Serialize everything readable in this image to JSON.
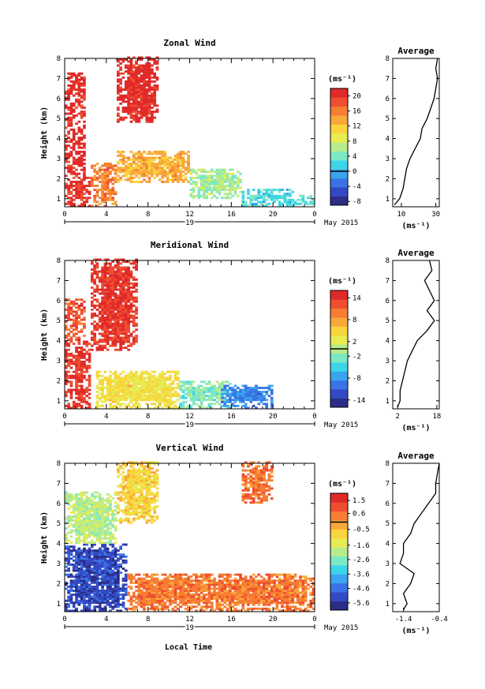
{
  "colors": {
    "scale": [
      "#2b2d86",
      "#3349c3",
      "#3a73e6",
      "#3aa5ee",
      "#3dd6e8",
      "#7de8c6",
      "#b8ec8a",
      "#e6ec52",
      "#f9d43c",
      "#f9a83a",
      "#f77d33",
      "#ef4e30",
      "#e02a2a"
    ],
    "zero_line": "#000000"
  },
  "shared": {
    "x_ticks": [
      "0",
      "4",
      "8",
      "12",
      "16",
      "20",
      "0"
    ],
    "date_day": "19",
    "date_label": "May 2015",
    "y_ticks": [
      "1",
      "2",
      "3",
      "4",
      "5",
      "6",
      "7",
      "8"
    ],
    "ylabel": "Height (km)",
    "units": "(ms⁻¹)",
    "avg_title": "Average",
    "xlabel": "Local Time"
  },
  "panels": [
    {
      "title": "Zonal Wind",
      "colorbar_ticks": [
        "20",
        "16",
        "12",
        "8",
        "4",
        "0",
        "-4",
        "-8"
      ],
      "avg_ticks": [
        "10",
        "30"
      ]
    },
    {
      "title": "Meridional Wind",
      "colorbar_ticks": [
        "14",
        "8",
        "2",
        "-2",
        "-8",
        "-14"
      ],
      "avg_ticks": [
        "2",
        "18"
      ]
    },
    {
      "title": "Vertical Wind",
      "colorbar_ticks": [
        "1.5",
        "0.6",
        "-0.5",
        "-1.6",
        "-2.6",
        "-3.6",
        "-4.6",
        "-5.6"
      ],
      "avg_ticks": [
        "-1.4",
        "-0.4"
      ]
    }
  ],
  "chart_data": [
    {
      "type": "heatmap",
      "title": "Zonal Wind",
      "x_range_hours": [
        0,
        24
      ],
      "y_range_km": [
        0.6,
        8.0
      ],
      "colorbar_range": [
        -9,
        22
      ],
      "regions": [
        {
          "t": [
            0,
            2.5
          ],
          "h": [
            0.6,
            2.2
          ],
          "value": 20
        },
        {
          "t": [
            0,
            1.8
          ],
          "h": [
            2.2,
            7.2
          ],
          "value": 21
        },
        {
          "t": [
            2.5,
            5
          ],
          "h": [
            0.6,
            2.8
          ],
          "value": 16
        },
        {
          "t": [
            5,
            9
          ],
          "h": [
            4.8,
            8.0
          ],
          "value": 21
        },
        {
          "t": [
            5,
            12
          ],
          "h": [
            1.8,
            3.4
          ],
          "value": 13
        },
        {
          "t": [
            12,
            17
          ],
          "h": [
            1.0,
            2.5
          ],
          "value": 6
        },
        {
          "t": [
            17,
            22
          ],
          "h": [
            0.6,
            1.5
          ],
          "value": 2
        },
        {
          "t": [
            22,
            24
          ],
          "h": [
            0.7,
            1.2
          ],
          "value": 3
        }
      ],
      "profile": {
        "title": "Average",
        "xlim": [
          5,
          32
        ],
        "x_ticks": [
          10,
          30
        ],
        "xlabel": "(ms⁻¹)",
        "height_km": [
          0.7,
          1.0,
          1.5,
          2.0,
          2.5,
          3.0,
          3.5,
          4.0,
          4.5,
          5.0,
          5.5,
          6.0,
          6.5,
          7.0,
          7.5,
          8.0
        ],
        "values": [
          6,
          9,
          11,
          12,
          13,
          15,
          18,
          21,
          22,
          25,
          27,
          29,
          30,
          31,
          30,
          31
        ]
      }
    },
    {
      "type": "heatmap",
      "title": "Meridional Wind",
      "x_range_hours": [
        0,
        24
      ],
      "y_range_km": [
        0.6,
        8.0
      ],
      "colorbar_range": [
        -16,
        16
      ],
      "regions": [
        {
          "t": [
            0,
            2.5
          ],
          "h": [
            0.6,
            4.0
          ],
          "value": 14
        },
        {
          "t": [
            0,
            2.0
          ],
          "h": [
            4.0,
            6.0
          ],
          "value": 12
        },
        {
          "t": [
            2.5,
            7
          ],
          "h": [
            3.5,
            8.0
          ],
          "value": 14
        },
        {
          "t": [
            3,
            11
          ],
          "h": [
            0.6,
            2.5
          ],
          "value": 4
        },
        {
          "t": [
            11,
            16
          ],
          "h": [
            0.6,
            2.0
          ],
          "value": -2
        },
        {
          "t": [
            15,
            20
          ],
          "h": [
            0.6,
            1.8
          ],
          "value": -9
        }
      ],
      "profile": {
        "title": "Average",
        "xlim": [
          0,
          19
        ],
        "x_ticks": [
          2,
          18
        ],
        "xlabel": "(ms⁻¹)",
        "height_km": [
          0.7,
          1.0,
          1.5,
          2.0,
          2.5,
          3.0,
          3.5,
          4.0,
          4.5,
          5.0,
          5.5,
          6.0,
          6.5,
          7.0,
          7.5,
          8.0
        ],
        "values": [
          2,
          3,
          3,
          4,
          5,
          6,
          8,
          10,
          14,
          17,
          14,
          17,
          15,
          13,
          16,
          15
        ]
      }
    },
    {
      "type": "heatmap",
      "title": "Vertical Wind",
      "x_range_hours": [
        0,
        24
      ],
      "y_range_km": [
        0.6,
        8.0
      ],
      "colorbar_range": [
        -6.1,
        2.0
      ],
      "regions": [
        {
          "t": [
            0,
            6
          ],
          "h": [
            0.6,
            4.0
          ],
          "value": -5.2
        },
        {
          "t": [
            0,
            5
          ],
          "h": [
            4.0,
            6.5
          ],
          "value": -2.0
        },
        {
          "t": [
            5,
            9
          ],
          "h": [
            5.0,
            8.0
          ],
          "value": -0.8
        },
        {
          "t": [
            6,
            24
          ],
          "h": [
            0.6,
            2.5
          ],
          "value": 0.5
        },
        {
          "t": [
            17,
            20
          ],
          "h": [
            6.0,
            8.0
          ],
          "value": 0.6
        }
      ],
      "profile": {
        "title": "Average",
        "xlim": [
          -1.7,
          -0.4
        ],
        "x_ticks": [
          -1.4,
          -0.4
        ],
        "xlabel": "(ms⁻¹)",
        "height_km": [
          0.7,
          1.0,
          1.5,
          2.0,
          2.5,
          3.0,
          3.5,
          4.0,
          4.5,
          5.0,
          5.5,
          6.0,
          6.5,
          7.0,
          7.5,
          8.0
        ],
        "values": [
          -1.4,
          -1.3,
          -1.4,
          -1.2,
          -1.1,
          -1.5,
          -1.4,
          -1.4,
          -1.2,
          -1.1,
          -0.9,
          -0.7,
          -0.5,
          -0.5,
          -0.45,
          -0.4
        ]
      }
    }
  ]
}
